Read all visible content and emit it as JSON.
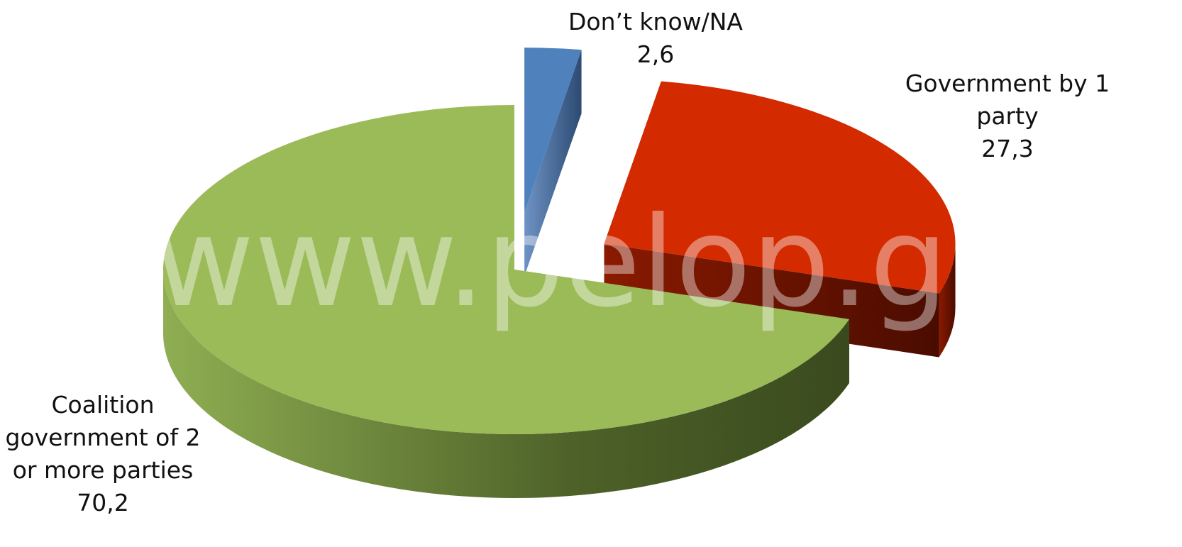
{
  "chart_data": {
    "type": "pie",
    "categories": [
      "Don’t know/NA",
      "Government by 1 party",
      "Coalition government of 2 or more parties"
    ],
    "values": [
      2.6,
      27.3,
      70.2
    ],
    "value_labels": [
      "2,6",
      "27,3",
      "70,2"
    ],
    "colors": [
      "#4f81bd",
      "#d42a00",
      "#9bbb59"
    ],
    "watermark": "www.pelop.gr"
  }
}
